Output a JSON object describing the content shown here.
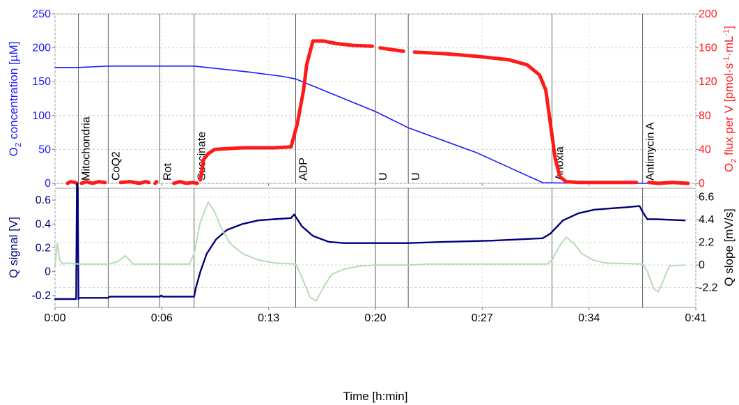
{
  "chart_data": [
    {
      "type": "line",
      "panel": "top",
      "x_unit": "min",
      "xlim": [
        0,
        41
      ],
      "x_tick_labels": [
        "0:00",
        "0:06",
        "0:13",
        "0:20",
        "0:27",
        "0:34",
        "0:41"
      ],
      "x_tick_values": [
        0,
        6.83,
        13.67,
        20.5,
        27.33,
        34.17,
        41
      ],
      "left_axis": {
        "label_main": "O",
        "label_sub": "2",
        "label_rest": " concentration [µM]",
        "ylim": [
          0,
          250
        ],
        "ticks": [
          0,
          50,
          100,
          150,
          200,
          250
        ],
        "color": "#1a1aff"
      },
      "right_axis": {
        "label_main": "O",
        "label_sub": "2",
        "label_rest": " flux per V [pmol·s",
        "label_sup1": "-1",
        "label_mid": "·mL",
        "label_sup2": "-1",
        "label_end": "]",
        "ylim": [
          0,
          200
        ],
        "ticks": [
          0,
          40,
          80,
          120,
          160,
          200
        ],
        "color": "#ff1a1a"
      },
      "events": [
        {
          "label": "Mitochondria",
          "x": 1.5
        },
        {
          "label": "CoQ2",
          "x": 3.4
        },
        {
          "label": "Rot",
          "x": 6.7
        },
        {
          "label": "Succinate",
          "x": 8.9
        },
        {
          "label": "ADP",
          "x": 15.4
        },
        {
          "label": "U",
          "x": 20.5
        },
        {
          "label": "U",
          "x": 22.6
        },
        {
          "label": "Anoxia",
          "x": 31.8
        },
        {
          "label": "Antimycin A",
          "x": 37.6
        }
      ],
      "series": [
        {
          "axis": "left",
          "color": "#1a1aff",
          "x": [
            0,
            1.5,
            3.4,
            6.7,
            8.9,
            10.5,
            12.5,
            14.5,
            15.4,
            20.5,
            22.6,
            27,
            31.2,
            34,
            40.2
          ],
          "y": [
            171,
            171,
            173,
            173,
            173,
            169,
            164,
            158,
            154,
            106,
            82,
            45,
            1,
            0,
            0
          ]
        },
        {
          "axis": "right",
          "color": "#ff1a1a",
          "segments": [
            {
              "x": [
                0.8,
                1.0,
                1.3,
                1.4
              ],
              "y": [
                0,
                2,
                1,
                0
              ]
            },
            {
              "x": [
                1.7,
                2.0,
                2.4,
                2.8,
                3.2
              ],
              "y": [
                0,
                2,
                0,
                2,
                1
              ]
            },
            {
              "x": [
                4.2,
                4.8,
                5.4,
                5.8,
                6.0
              ],
              "y": [
                1,
                2,
                0,
                2,
                1
              ]
            },
            {
              "x": [
                6.4,
                6.5
              ],
              "y": [
                0,
                2
              ]
            },
            {
              "x": [
                7.6,
                8.0,
                8.4,
                8.8,
                9.1
              ],
              "y": [
                0,
                2,
                0,
                1,
                0
              ]
            },
            {
              "x": [
                9.3,
                9.5,
                9.8,
                10.2,
                11,
                12,
                13,
                14,
                15.1,
                15.5,
                15.9,
                16.1,
                16.5,
                17.2,
                18,
                19,
                20.3
              ],
              "y": [
                4,
                28,
                35,
                40,
                41,
                42,
                42,
                42,
                43,
                70,
                110,
                140,
                168,
                168,
                165,
                163,
                162
              ]
            },
            {
              "x": [
                20.8,
                21.5,
                22.3
              ],
              "y": [
                160,
                158,
                156
              ]
            },
            {
              "x": [
                23.0,
                25,
                27,
                29,
                30.2,
                31.0,
                31.4,
                31.7,
                32.0,
                32.3,
                32.7,
                33.5,
                35,
                37.2
              ],
              "y": [
                155,
                153,
                150,
                146,
                140,
                128,
                110,
                70,
                30,
                8,
                2,
                1,
                1,
                1
              ]
            },
            {
              "x": [
                38.0,
                38.6,
                39.5,
                40.5
              ],
              "y": [
                1,
                0,
                1,
                0
              ]
            }
          ]
        }
      ]
    },
    {
      "type": "line",
      "panel": "bottom",
      "x_unit": "min",
      "xlim": [
        0,
        41
      ],
      "x_tick_labels": [
        "0:00",
        "0:06",
        "0:13",
        "0:20",
        "0:27",
        "0:34",
        "0:41"
      ],
      "x_tick_values": [
        0,
        6.83,
        13.67,
        20.5,
        27.33,
        34.17,
        41
      ],
      "xlabel": "Time [h:min]",
      "left_axis": {
        "label": "Q signal [V]",
        "ylim": [
          -0.3,
          0.7
        ],
        "ticks": [
          -0.2,
          0,
          0.2,
          0.4,
          0.6
        ],
        "color": "#00007a"
      },
      "right_axis": {
        "label": "Q slope [mV/s]",
        "ylim": [
          -4.12,
          7.46
        ],
        "ticks": [
          -2.2,
          0,
          2.2,
          4.4,
          6.6
        ],
        "color": "#000000"
      },
      "events": [
        {
          "x": 1.5
        },
        {
          "x": 3.4
        },
        {
          "x": 6.7
        },
        {
          "x": 8.9
        },
        {
          "x": 15.4
        },
        {
          "x": 20.5
        },
        {
          "x": 22.6
        },
        {
          "x": 31.8
        },
        {
          "x": 37.6
        }
      ],
      "series": [
        {
          "axis": "left",
          "color": "#00007a",
          "x": [
            0,
            1.35,
            1.4,
            1.45,
            1.5,
            1.55,
            3.4,
            3.5,
            6.7,
            6.8,
            6.9,
            8.9,
            9.0,
            9.3,
            9.7,
            10.3,
            11,
            12,
            13,
            14,
            15.1,
            15.3,
            15.5,
            15.8,
            16.5,
            17.5,
            18.5,
            20.5,
            22.6,
            25,
            28,
            31.2,
            31.7,
            32.5,
            33.5,
            34.5,
            35.5,
            36.5,
            37.4,
            37.6,
            37.9,
            38.5,
            40.3
          ],
          "y": [
            -0.23,
            -0.23,
            0.85,
            0.85,
            -0.23,
            -0.22,
            -0.22,
            -0.21,
            -0.21,
            -0.2,
            -0.21,
            -0.21,
            -0.14,
            0.0,
            0.15,
            0.27,
            0.35,
            0.4,
            0.43,
            0.44,
            0.45,
            0.48,
            0.44,
            0.38,
            0.3,
            0.25,
            0.24,
            0.24,
            0.24,
            0.25,
            0.26,
            0.28,
            0.32,
            0.43,
            0.49,
            0.52,
            0.53,
            0.54,
            0.55,
            0.5,
            0.44,
            0.44,
            0.43
          ]
        },
        {
          "axis": "right",
          "color": "#b5dcb5",
          "x": [
            0,
            0.15,
            0.3,
            0.5,
            0.8,
            1.5,
            3.4,
            4.0,
            4.5,
            5.0,
            8.6,
            8.9,
            9.3,
            9.8,
            10.2,
            10.6,
            11.2,
            12,
            13,
            14,
            15.4,
            15.8,
            16.3,
            16.7,
            17.2,
            17.7,
            18.5,
            19.5,
            20.5,
            22.6,
            24,
            27,
            31.5,
            31.8,
            32.3,
            32.7,
            33.2,
            33.7,
            34.4,
            35.2,
            37.6,
            37.9,
            38.3,
            38.6,
            38.9,
            39.3,
            40.3
          ],
          "y": [
            0,
            2.1,
            0.5,
            0.1,
            0.2,
            0.1,
            0.1,
            0.3,
            0.9,
            0.1,
            0.1,
            1.1,
            4.2,
            6.1,
            5.2,
            3.7,
            2.1,
            1.1,
            0.5,
            0.2,
            0.1,
            -1.2,
            -3.1,
            -3.5,
            -2.1,
            -0.9,
            -0.4,
            -0.1,
            0,
            0,
            0.1,
            0.1,
            0.1,
            0.5,
            1.9,
            2.7,
            2.1,
            1.1,
            0.5,
            0.2,
            0.1,
            -0.6,
            -2.3,
            -2.6,
            -1.6,
            -0.1,
            0
          ]
        }
      ]
    }
  ]
}
